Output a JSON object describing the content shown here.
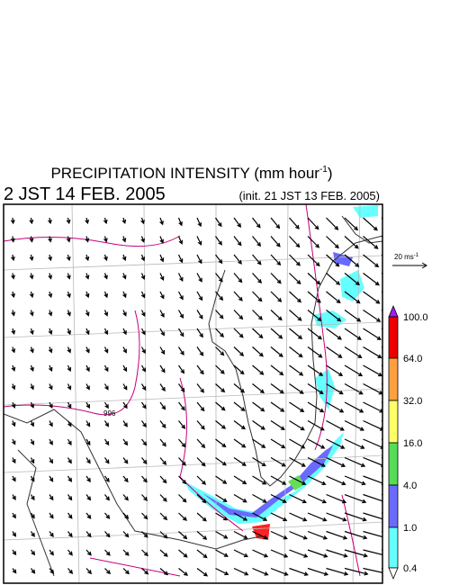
{
  "header": {
    "title": "PRECIPITATION INTENSITY (mm hour",
    "title_exponent": "-1",
    "title_close": ")",
    "valid_time": "2 JST 14 FEB. 2005",
    "init_time": "(init. 21 JST 13 FEB. 2005)"
  },
  "map": {
    "contour_label": "996",
    "wind_scale": "20 ms",
    "wind_scale_exponent": "-1"
  },
  "colorbar": {
    "labels": [
      "100.0",
      "64.0",
      "32.0",
      "16.0",
      "4.0",
      "1.0",
      "0.4"
    ]
  }
}
